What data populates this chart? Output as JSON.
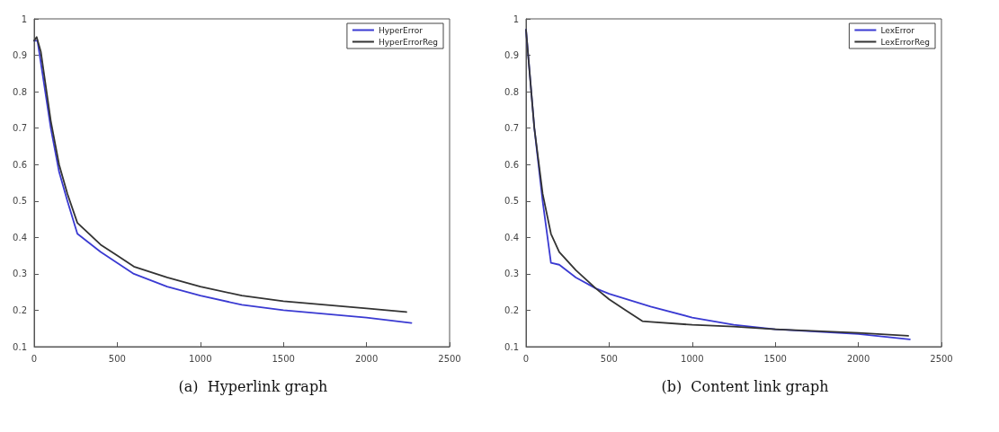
{
  "chart_data": [
    {
      "type": "line",
      "title": "(a)  Hyperlink graph",
      "xlim": [
        0,
        2500
      ],
      "xticks": [
        0,
        500,
        1000,
        1500,
        2000,
        2500
      ],
      "ylim": [
        0.1,
        1
      ],
      "yticks": [
        0.1,
        0.2,
        0.3,
        0.4,
        0.5,
        0.6,
        0.7,
        0.8,
        0.9,
        1
      ],
      "grid": false,
      "legend": "top right",
      "marker": "none",
      "line_style": "solid",
      "series": [
        {
          "name": "HyperError",
          "color": "#3a3ad2",
          "x": [
            0,
            20,
            50,
            100,
            150,
            200,
            260,
            400,
            500,
            600,
            800,
            1000,
            1250,
            1500,
            2000,
            2270
          ],
          "values": [
            0.94,
            0.94,
            0.85,
            0.7,
            0.58,
            0.5,
            0.41,
            0.36,
            0.33,
            0.3,
            0.265,
            0.24,
            0.215,
            0.2,
            0.18,
            0.165
          ]
        },
        {
          "name": "HyperErrorReg",
          "color": "#333333",
          "x": [
            0,
            15,
            40,
            100,
            150,
            200,
            260,
            400,
            500,
            600,
            800,
            1000,
            1250,
            1500,
            2000,
            2240
          ],
          "values": [
            0.94,
            0.95,
            0.91,
            0.72,
            0.6,
            0.52,
            0.44,
            0.38,
            0.35,
            0.32,
            0.29,
            0.265,
            0.24,
            0.225,
            0.205,
            0.195
          ]
        }
      ]
    },
    {
      "type": "line",
      "title": "(b)  Content link graph",
      "xlim": [
        0,
        2500
      ],
      "xticks": [
        0,
        500,
        1000,
        1500,
        2000,
        2500
      ],
      "ylim": [
        0.1,
        1
      ],
      "yticks": [
        0.1,
        0.2,
        0.3,
        0.4,
        0.5,
        0.6,
        0.7,
        0.8,
        0.9,
        1
      ],
      "grid": false,
      "legend": "top right",
      "marker": "none",
      "line_style": "solid",
      "series": [
        {
          "name": "LexError",
          "color": "#3a3ad2",
          "x": [
            0,
            50,
            100,
            150,
            200,
            300,
            420,
            500,
            750,
            1000,
            1250,
            1500,
            2000,
            2310
          ],
          "values": [
            0.97,
            0.7,
            0.5,
            0.33,
            0.325,
            0.29,
            0.26,
            0.245,
            0.21,
            0.18,
            0.16,
            0.148,
            0.135,
            0.12
          ]
        },
        {
          "name": "LexErrorReg",
          "color": "#333333",
          "x": [
            0,
            50,
            100,
            150,
            200,
            300,
            420,
            500,
            600,
            700,
            750,
            1000,
            1250,
            1500,
            2000,
            2300
          ],
          "values": [
            0.97,
            0.7,
            0.52,
            0.41,
            0.36,
            0.31,
            0.26,
            0.23,
            0.2,
            0.17,
            0.168,
            0.16,
            0.155,
            0.148,
            0.138,
            0.13
          ]
        }
      ]
    }
  ]
}
